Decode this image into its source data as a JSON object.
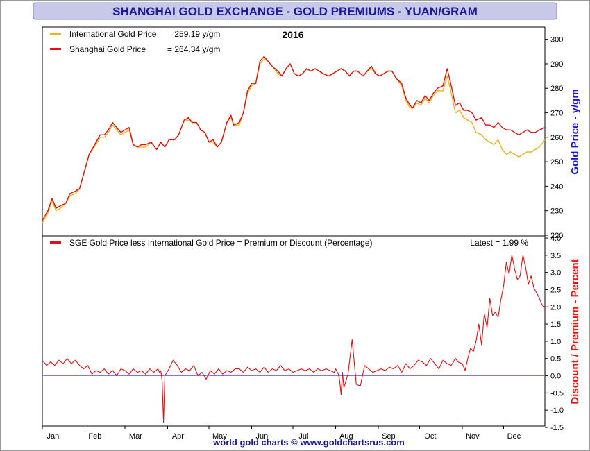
{
  "header": {
    "title": "SHANGHAI GOLD EXCHANGE - GOLD PREMIUMS - YUAN/GRAM",
    "year": "2016",
    "footer": "world gold charts © www.goldchartsrus.com"
  },
  "colors": {
    "title_bg": "#c8c8e8",
    "title_text": "#1a1a9a",
    "international": "#f0b020",
    "shanghai": "#dd1111",
    "premium": "#dd1111",
    "zero_line": "#7a7ad0",
    "right_axis_top": "#1818d0",
    "right_axis_bottom": "#ee1111",
    "footer_text": "#1a1a9a"
  },
  "months": [
    "Jan",
    "Feb",
    "Mar",
    "Apr",
    "May",
    "Jun",
    "Jul",
    "Aug",
    "Sep",
    "Oct",
    "Nov",
    "Dec"
  ],
  "month_days": [
    1,
    32,
    61,
    92,
    122,
    153,
    183,
    214,
    245,
    275,
    306,
    336
  ],
  "chart_data": [
    {
      "type": "line",
      "title": "",
      "ylabel": "Gold Price - y/gm",
      "ylim": [
        220,
        305
      ],
      "yticks": [
        "230",
        "240",
        "250",
        "260",
        "270",
        "280",
        "290",
        "300"
      ],
      "yticks_extra": [
        "220"
      ],
      "legend": [
        {
          "label": "International Gold Price",
          "value": "= 259.19 y/gm"
        },
        {
          "label": "Shanghai Gold Price",
          "value": "= 264.34 y/gm"
        }
      ],
      "legend_placement": "top-left",
      "grid": false,
      "x_unit": "day of year 2016",
      "series": [
        {
          "name": "International Gold Price",
          "x": [
            1,
            5,
            8,
            11,
            14,
            18,
            21,
            25,
            28,
            32,
            35,
            40,
            43,
            46,
            49,
            52,
            55,
            58,
            61,
            64,
            67,
            70,
            73,
            76,
            80,
            84,
            87,
            90,
            93,
            97,
            100,
            104,
            107,
            110,
            113,
            116,
            119,
            122,
            125,
            128,
            131,
            135,
            138,
            140,
            144,
            147,
            150,
            153,
            156,
            159,
            162,
            165,
            168,
            172,
            175,
            178,
            181,
            184,
            187,
            190,
            193,
            196,
            199,
            202,
            205,
            209,
            212,
            215,
            218,
            221,
            224,
            227,
            230,
            234,
            237,
            240,
            243,
            246,
            249,
            252,
            255,
            258,
            262,
            265,
            268,
            270,
            273,
            276,
            279,
            282,
            285,
            288,
            292,
            295,
            298,
            301,
            304,
            307,
            310,
            313,
            316,
            320,
            323,
            326,
            329,
            332,
            335,
            338,
            341,
            344,
            347,
            350,
            353,
            356,
            359,
            362,
            366
          ],
          "values": [
            225,
            229,
            234,
            230,
            231,
            233,
            236,
            237,
            239,
            247,
            253,
            257,
            260,
            260,
            262,
            265,
            263,
            261,
            262,
            263,
            257,
            256,
            256,
            256,
            258,
            255,
            258,
            256,
            259,
            259,
            261,
            267,
            267,
            266,
            266,
            263,
            262,
            258,
            258,
            256,
            258,
            266,
            268,
            265,
            265,
            270,
            278,
            281,
            282,
            290,
            292,
            291,
            289,
            286,
            285,
            288,
            290,
            286,
            285,
            286,
            288,
            287,
            288,
            287,
            286,
            285,
            286,
            287,
            288,
            287,
            285,
            287,
            287,
            285,
            287,
            288,
            286,
            285,
            286,
            287,
            287,
            284,
            281,
            275,
            272,
            272,
            274,
            273,
            276,
            274,
            277,
            279,
            279,
            285,
            278,
            270,
            271,
            268,
            267,
            266,
            262,
            261,
            259,
            258,
            257,
            259,
            255,
            253,
            254,
            253,
            252,
            253,
            254,
            254,
            255,
            256,
            259
          ],
          "color_key": "international"
        },
        {
          "name": "Shanghai Gold Price",
          "x": [
            1,
            5,
            8,
            11,
            14,
            18,
            21,
            25,
            28,
            32,
            35,
            40,
            43,
            46,
            49,
            52,
            55,
            58,
            61,
            64,
            67,
            70,
            73,
            76,
            80,
            84,
            87,
            90,
            93,
            97,
            100,
            104,
            107,
            110,
            113,
            116,
            119,
            122,
            125,
            128,
            131,
            135,
            138,
            140,
            144,
            147,
            150,
            153,
            156,
            159,
            162,
            165,
            168,
            172,
            175,
            178,
            181,
            184,
            187,
            190,
            193,
            196,
            199,
            202,
            205,
            209,
            212,
            215,
            218,
            221,
            224,
            227,
            230,
            234,
            237,
            240,
            243,
            246,
            249,
            252,
            255,
            258,
            262,
            265,
            268,
            270,
            273,
            276,
            279,
            282,
            285,
            288,
            292,
            295,
            298,
            301,
            304,
            307,
            310,
            313,
            316,
            320,
            323,
            326,
            329,
            332,
            335,
            338,
            341,
            344,
            347,
            350,
            353,
            356,
            359,
            362,
            366
          ],
          "values": [
            226,
            230,
            235,
            231,
            232,
            233,
            237,
            238,
            239,
            247,
            253,
            258,
            261,
            261,
            263,
            266,
            264,
            262,
            263,
            264,
            257,
            256,
            257,
            257,
            258,
            255,
            258,
            256,
            259,
            259,
            261,
            267,
            268,
            266,
            266,
            263,
            262,
            258,
            259,
            256,
            258,
            266,
            269,
            265,
            266,
            270,
            279,
            282,
            282,
            291,
            293,
            291,
            289,
            287,
            285,
            288,
            290,
            286,
            285,
            286,
            288,
            287,
            288,
            287,
            286,
            285,
            286,
            287,
            288,
            287,
            285,
            287,
            287,
            285,
            287,
            289,
            286,
            285,
            286,
            287,
            287,
            284,
            282,
            276,
            273,
            272,
            275,
            274,
            277,
            275,
            278,
            280,
            281,
            288,
            281,
            273,
            274,
            271,
            271,
            270,
            267,
            268,
            265,
            265,
            264,
            266,
            264,
            263,
            263,
            262,
            261,
            262,
            263,
            262,
            262,
            263,
            264
          ],
          "color_key": "shanghai"
        }
      ]
    },
    {
      "type": "line",
      "title": "",
      "ylabel": "Discount / Premium - Percent",
      "ylim": [
        -1.5,
        4.0
      ],
      "yticks": [
        "-1.5",
        "-1.0",
        "-0.5",
        "0.0",
        "0.5",
        "1.0",
        "1.5",
        "2.0",
        "2.5",
        "3.0",
        "3.5",
        "4.0"
      ],
      "legend": [
        {
          "label": "SGE Gold Price less International Gold Price = Premium or Discount (Percentage)"
        }
      ],
      "latest": "Latest = 1.99 %",
      "legend_placement": "top-left",
      "grid": false,
      "zero_line": true,
      "series": [
        {
          "name": "SGE Gold Price less International Gold Price = Premium or Discount (Percentage)",
          "x": [
            1,
            4,
            7,
            10,
            13,
            16,
            19,
            22,
            25,
            28,
            31,
            34,
            37,
            40,
            43,
            46,
            49,
            52,
            55,
            58,
            61,
            64,
            67,
            70,
            73,
            76,
            79,
            82,
            85,
            86,
            87,
            88,
            89,
            90,
            93,
            96,
            99,
            102,
            105,
            108,
            111,
            114,
            117,
            120,
            123,
            126,
            129,
            132,
            135,
            138,
            141,
            144,
            147,
            150,
            153,
            156,
            159,
            162,
            165,
            168,
            171,
            174,
            177,
            180,
            183,
            186,
            189,
            192,
            195,
            198,
            201,
            204,
            207,
            210,
            213,
            214,
            216,
            217,
            218,
            219,
            220,
            223,
            226,
            229,
            232,
            235,
            238,
            241,
            244,
            247,
            250,
            253,
            256,
            259,
            262,
            265,
            268,
            271,
            274,
            277,
            280,
            283,
            286,
            289,
            292,
            295,
            298,
            301,
            303,
            306,
            308,
            310,
            312,
            314,
            316,
            318,
            320,
            322,
            324,
            326,
            328,
            330,
            332,
            334,
            336,
            338,
            340,
            342,
            344,
            346,
            348,
            350,
            352,
            354,
            356,
            358,
            360,
            362,
            364,
            366
          ],
          "values": [
            0.45,
            0.3,
            0.4,
            0.3,
            0.45,
            0.35,
            0.5,
            0.35,
            0.45,
            0.3,
            0.2,
            0.3,
            0.05,
            0.15,
            0.1,
            0.2,
            0.05,
            0.15,
            0.0,
            0.2,
            0.15,
            0.05,
            0.2,
            0.1,
            0.15,
            0.05,
            0.2,
            0.1,
            0.2,
            0.1,
            0.15,
            -0.15,
            -1.35,
            0.0,
            0.2,
            0.45,
            0.3,
            0.1,
            0.2,
            0.15,
            0.3,
            0.0,
            0.1,
            -0.1,
            0.15,
            0.05,
            0.2,
            0.05,
            0.15,
            0.1,
            0.2,
            0.2,
            0.1,
            0.25,
            0.15,
            0.2,
            0.1,
            0.25,
            0.1,
            0.2,
            0.15,
            0.3,
            0.15,
            0.2,
            0.1,
            0.15,
            0.2,
            0.15,
            0.2,
            0.1,
            0.2,
            0.15,
            0.2,
            0.15,
            0.1,
            0.2,
            0.05,
            -0.15,
            -0.55,
            0.1,
            -0.35,
            0.05,
            1.05,
            -0.25,
            -0.3,
            0.3,
            0.2,
            0.1,
            0.15,
            0.2,
            0.15,
            0.25,
            0.2,
            0.3,
            0.1,
            0.35,
            0.2,
            0.3,
            0.45,
            0.4,
            0.3,
            0.5,
            0.35,
            0.2,
            0.45,
            0.35,
            0.3,
            0.5,
            0.4,
            0.35,
            0.15,
            0.5,
            0.8,
            0.7,
            1.0,
            1.5,
            0.9,
            1.8,
            1.4,
            2.25,
            1.75,
            1.85,
            1.7,
            2.2,
            2.6,
            3.3,
            2.95,
            3.5,
            3.1,
            2.8,
            2.9,
            3.5,
            3.15,
            2.65,
            2.9,
            2.55,
            2.4,
            2.25,
            2.05,
            1.99
          ],
          "color_key": "premium"
        }
      ]
    }
  ]
}
